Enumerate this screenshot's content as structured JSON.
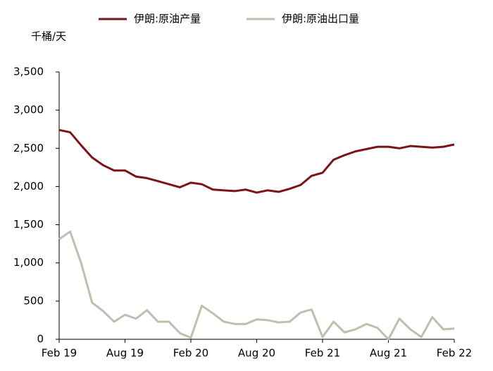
{
  "chart_data": {
    "type": "line",
    "y_label": "千桶/天",
    "categories": [
      "Feb 19",
      null,
      null,
      null,
      null,
      null,
      "Aug 19",
      null,
      null,
      null,
      null,
      null,
      "Feb 20",
      null,
      null,
      null,
      null,
      null,
      "Aug 20",
      null,
      null,
      null,
      null,
      null,
      "Feb 21",
      null,
      null,
      null,
      null,
      null,
      "Aug 21",
      null,
      null,
      null,
      null,
      null,
      "Feb 22"
    ],
    "series": [
      {
        "name": "伊朗:原油产量",
        "color": "#7b1416",
        "values": [
          2740,
          2710,
          2540,
          2380,
          2280,
          2210,
          2210,
          2130,
          2110,
          2070,
          2030,
          1990,
          2050,
          2030,
          1960,
          1950,
          1940,
          1960,
          1920,
          1950,
          1930,
          1970,
          2020,
          2140,
          2180,
          2350,
          2410,
          2460,
          2490,
          2520,
          2520,
          2500,
          2530,
          2520,
          2510,
          2520,
          2550
        ]
      },
      {
        "name": "伊朗:原油出口量",
        "color": "#bfbfb0",
        "values": [
          1310,
          1410,
          1000,
          480,
          370,
          230,
          320,
          270,
          380,
          230,
          230,
          80,
          20,
          440,
          340,
          230,
          200,
          200,
          260,
          250,
          220,
          230,
          350,
          390,
          30,
          230,
          90,
          130,
          200,
          150,
          0,
          270,
          130,
          30,
          290,
          130,
          140
        ]
      }
    ],
    "ylim": [
      0,
      3500
    ],
    "yticks": [
      0,
      500,
      {
        "value": 1000,
        "label": "1,000"
      },
      {
        "value": 1500,
        "label": "1,500"
      },
      {
        "value": 2000,
        "label": "2,000"
      },
      {
        "value": 2500,
        "label": "2,500"
      },
      {
        "value": 3000,
        "label": "3,000"
      },
      {
        "value": 3500,
        "label": "3,500"
      }
    ],
    "grid": false
  }
}
